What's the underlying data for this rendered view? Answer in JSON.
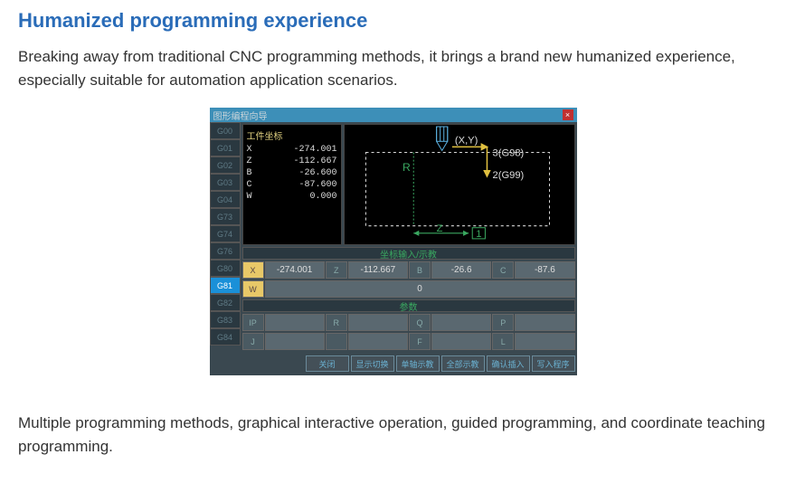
{
  "title": "Humanized programming experience",
  "para1": "Breaking away from traditional CNC programming methods, it brings a brand new humanized experience, especially suitable for automation application scenarios.",
  "para2": "Multiple programming methods, graphical interactive operation, guided programming, and coordinate teaching programming.",
  "cnc": {
    "window_title": "图形编程向导",
    "close": "×",
    "sidebar_codes": [
      "G00",
      "G01",
      "G02",
      "G03",
      "G04",
      "G73",
      "G74",
      "G76",
      "G80",
      "G81",
      "G82",
      "G83",
      "G84"
    ],
    "sidebar_active_index": 9,
    "coord_title": "工件坐标",
    "coords": [
      {
        "label": "X",
        "val": "-274.001"
      },
      {
        "label": "Z",
        "val": "-112.667"
      },
      {
        "label": "B",
        "val": "-26.600"
      },
      {
        "label": "C",
        "val": "-87.600"
      },
      {
        "label": "W",
        "val": "0.000"
      }
    ],
    "section_input": "坐标输入/示教",
    "section_param": "参数",
    "row1": [
      {
        "l": "X",
        "v": "-274.001"
      },
      {
        "l": "Z",
        "v": "-112.667"
      },
      {
        "l": "B",
        "v": "-26.6"
      },
      {
        "l": "C",
        "v": "-87.6"
      }
    ],
    "row2": [
      {
        "l": "W",
        "v": "0"
      }
    ],
    "row3": [
      {
        "l": "IP",
        "v": ""
      },
      {
        "l": "R",
        "v": ""
      },
      {
        "l": "Q",
        "v": ""
      },
      {
        "l": "P",
        "v": ""
      }
    ],
    "row4": [
      {
        "l": "J",
        "v": ""
      },
      {
        "l": "",
        "v": ""
      },
      {
        "l": "F",
        "v": ""
      },
      {
        "l": "L",
        "v": ""
      }
    ],
    "bottom_buttons": [
      "关闭",
      "显示切换",
      "单轴示教",
      "全部示教",
      "确认插入",
      "写入程序"
    ],
    "diagram": {
      "xy_label": "(X,Y)",
      "g98": "3(G98)",
      "g99": "2(G99)",
      "R": "R",
      "Z": "Z",
      "L": "1",
      "tool_color": "#5ab0e0",
      "dash_color": "#d8d8d8",
      "yellow": "#e0c040",
      "green": "#3aa860"
    }
  },
  "colors": {
    "title": "#2a6cb8",
    "panel_bg": "#3a4850",
    "header_bg": "#3d8fb8",
    "active": "#1a90d8"
  }
}
